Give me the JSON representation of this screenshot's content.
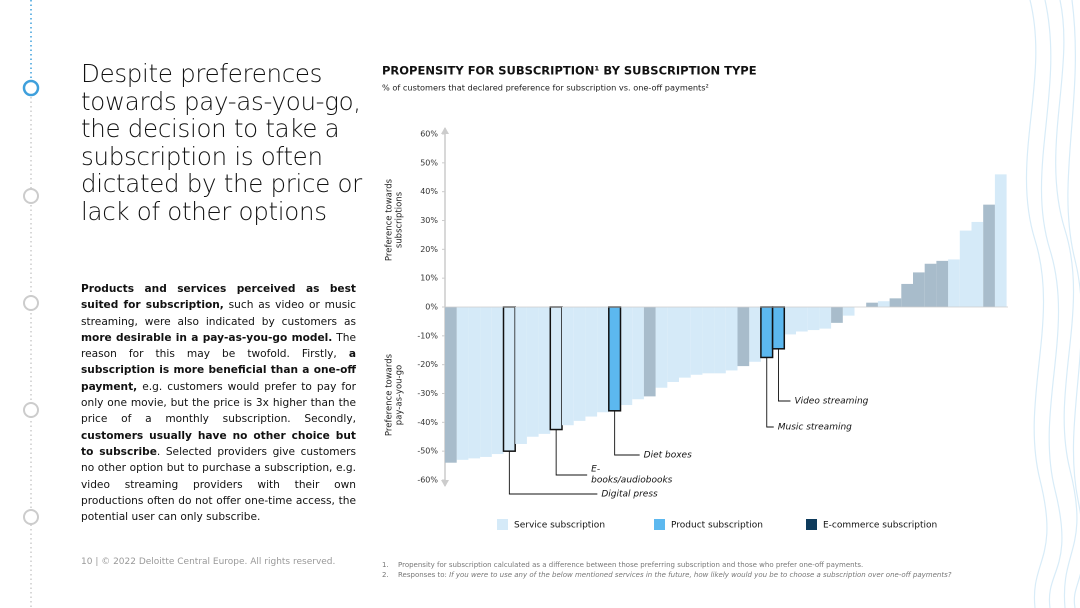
{
  "heading": "Despite preferences towards pay-as-you-go, the decision to take a subscription is often dictated by the price or lack of other options",
  "paragraph": [
    {
      "text": "Products and services perceived as best suited for subscription,",
      "bold": true
    },
    {
      "text": " such as video or music streaming, were also indicated by customers as ",
      "bold": false
    },
    {
      "text": "more desirable in a pay-as-you-go model.",
      "bold": true
    },
    {
      "text": " The reason for this may be twofold. Firstly, ",
      "bold": false
    },
    {
      "text": "a subscription is more beneficial than a one-off payment,",
      "bold": true
    },
    {
      "text": " e.g. customers would prefer to pay for only one movie, but the price is 3x higher than the price of a monthly subscription. Secondly, ",
      "bold": false
    },
    {
      "text": "customers usually have no other choice but to subscribe",
      "bold": true
    },
    {
      "text": ". Selected providers give customers no other option but to purchase a subscription, e.g. video streaming providers with their own productions often do not offer one-time access, the potential user can only subscribe.",
      "bold": false
    }
  ],
  "footer": "10  | © 2022 Deloitte Central Europe. All rights reserved.",
  "footnotes": [
    [
      {
        "text": "1.",
        "italic": false
      },
      {
        "text": "Propensity for subscription calculated as a difference between those preferring subscription and those who prefer one-off payments.",
        "italic": false
      }
    ],
    [
      {
        "text": "2.",
        "italic": false
      },
      {
        "text": "Responses to: ",
        "italic": false
      },
      {
        "text": "If you were to use any of the below mentioned services in the future, how likely would you be to choose a subscription over one-off payments?",
        "italic": true
      }
    ]
  ],
  "chart_data": {
    "type": "bar",
    "title": "PROPENSITY FOR SUBSCRIPTION¹ BY SUBSCRIPTION TYPE",
    "subtitle": "% of customers that declared preference for subscription vs. one-off payments²",
    "y_axis_labels": [
      [
        "Preference towards",
        "subscriptions"
      ],
      [
        "Preference towards",
        "pay-as-you-go"
      ]
    ],
    "ylim": [
      -60,
      60
    ],
    "yticks": [
      {
        "value": 60,
        "label": "60%"
      },
      {
        "value": 50,
        "label": "50%"
      },
      {
        "value": 40,
        "label": "40%"
      },
      {
        "value": 30,
        "label": "30%"
      },
      {
        "value": 20,
        "label": "20%"
      },
      {
        "value": 10,
        "label": "10%"
      },
      {
        "value": 0,
        "label": "0%"
      },
      {
        "value": -10,
        "label": "-10%"
      },
      {
        "value": -20,
        "label": "-20%"
      },
      {
        "value": -30,
        "label": "-30%"
      },
      {
        "value": -40,
        "label": "-40%"
      },
      {
        "value": -50,
        "label": "-50%"
      },
      {
        "value": -60,
        "label": "-60%"
      }
    ],
    "series": [
      {
        "name": "Service subscription",
        "color": "#d5eaf8",
        "legend_color": "#d5eaf8",
        "values": [
          null,
          -53,
          -52.5,
          -52,
          -51,
          -50,
          -47.5,
          -45,
          -44,
          -42.5,
          -41,
          -39.5,
          -38,
          -36.5,
          null,
          -34,
          -32,
          null,
          -28,
          -26,
          -24.5,
          -23.5,
          -23,
          -23,
          -22,
          null,
          -19,
          null,
          null,
          -9.5,
          -8.5,
          -8,
          -7.5,
          null,
          -3,
          null,
          null,
          2,
          null,
          null,
          null,
          null,
          null,
          16.5,
          26.5,
          29.5,
          null,
          46
        ]
      },
      {
        "name": "Product subscription",
        "color": "#5cb8ef",
        "legend_color": "#5cb8ef",
        "values": [
          null,
          null,
          null,
          null,
          null,
          null,
          null,
          null,
          null,
          null,
          null,
          null,
          null,
          null,
          -36,
          null,
          null,
          null,
          null,
          null,
          null,
          null,
          null,
          null,
          null,
          null,
          null,
          -17.5,
          -14.5,
          null,
          null,
          null,
          null,
          null,
          null,
          null,
          null,
          null,
          null,
          null,
          null,
          null,
          null,
          null,
          null,
          null,
          null,
          null
        ]
      },
      {
        "name": "E-commerce subscription",
        "color": "#a8bccb",
        "legend_color": "#0e3b5c",
        "values": [
          -54,
          null,
          null,
          null,
          null,
          null,
          null,
          null,
          null,
          null,
          null,
          null,
          null,
          null,
          null,
          null,
          null,
          -31,
          null,
          null,
          null,
          null,
          null,
          null,
          null,
          -20.5,
          null,
          null,
          null,
          null,
          null,
          null,
          null,
          -5.5,
          null,
          0,
          1.5,
          null,
          3,
          8,
          12,
          15,
          16,
          null,
          null,
          null,
          35.5,
          null
        ]
      }
    ],
    "annotations": [
      {
        "text": [
          "Digital press"
        ],
        "index": 5
      },
      {
        "text": [
          "E-",
          "books/audiobooks"
        ],
        "index": 9
      },
      {
        "text": [
          "Diet boxes"
        ],
        "index": 14
      },
      {
        "text": [
          "Music streaming"
        ],
        "index": 27
      },
      {
        "text": [
          "Video streaming"
        ],
        "index": 28
      }
    ]
  }
}
